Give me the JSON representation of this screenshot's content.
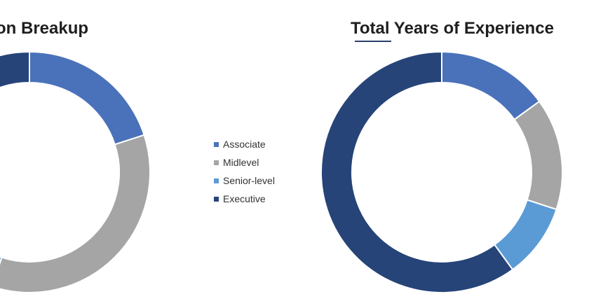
{
  "colors": {
    "associate": "#4a72ba",
    "midlevel": "#a5a5a5",
    "senior_level": "#5b9bd5",
    "executive": "#264478"
  },
  "chart_data": [
    {
      "type": "donut",
      "title": "on Breakup",
      "series": [
        {
          "name": "Associate",
          "value": 20,
          "color": "#4a72ba"
        },
        {
          "name": "Midlevel",
          "value": 35,
          "color": "#a5a5a5"
        },
        {
          "name": "Senior-level",
          "value": 25,
          "color": "#5b9bd5"
        },
        {
          "name": "Executive",
          "value": 20,
          "color": "#264478"
        }
      ]
    },
    {
      "type": "donut",
      "title": "Total Years of Experience",
      "title_underline_word": "Total",
      "series": [
        {
          "name": "Associate",
          "value": 15,
          "color": "#4a72ba"
        },
        {
          "name": "Midlevel",
          "value": 15,
          "color": "#a5a5a5"
        },
        {
          "name": "Senior-level",
          "value": 10,
          "color": "#5b9bd5"
        },
        {
          "name": "Executive",
          "value": 60,
          "color": "#264478"
        }
      ]
    }
  ],
  "legend": {
    "placement": "center",
    "items": [
      {
        "label": "Associate",
        "color": "#4a72ba"
      },
      {
        "label": "Midlevel",
        "color": "#a5a5a5"
      },
      {
        "label": "Senior-level",
        "color": "#5b9bd5"
      },
      {
        "label": "Executive",
        "color": "#264478"
      }
    ]
  }
}
